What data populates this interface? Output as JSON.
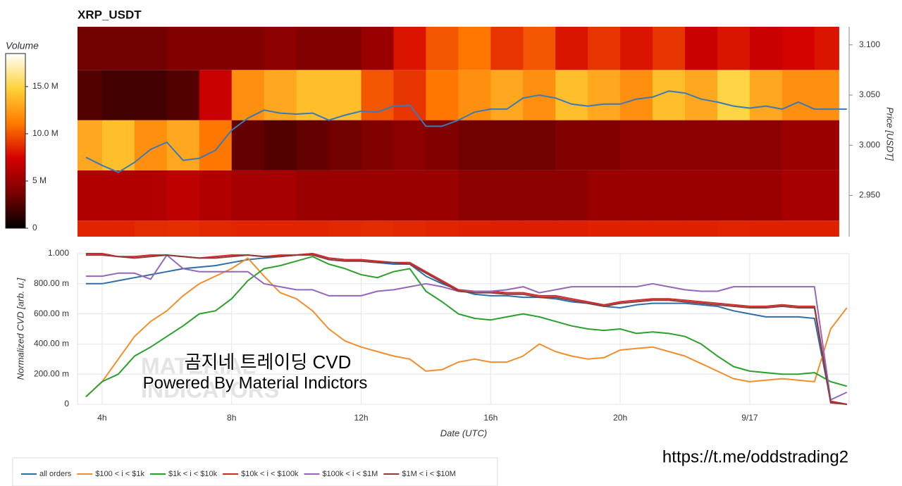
{
  "chart_data": [
    {
      "type": "heatmap",
      "title": "XRP_USDT",
      "y2label": "Price [USDT]",
      "colorbar_label": "Volume",
      "colorscale": [
        "#000000",
        "#7a0000",
        "#d40000",
        "#ff7a00",
        "#ffd23a",
        "#ffffff"
      ],
      "zlim": [
        0,
        18500000
      ],
      "zticks": [
        0,
        {
          "value": 5000000,
          "label": "5 M"
        },
        {
          "value": 10000000,
          "label": "10.0 M"
        },
        {
          "value": 15000000,
          "label": "15.0 M"
        }
      ],
      "xlim": [
        3.24,
        27.07
      ],
      "ylim": [
        2.909,
        3.118
      ],
      "yticks": [
        {
          "value": 3.1,
          "label": "3.100"
        },
        {
          "value": 3.05,
          "label": "3.050"
        },
        {
          "value": 3.0,
          "label": "3.000"
        },
        {
          "value": 2.95,
          "label": "2.950"
        }
      ],
      "x_bins": [
        3,
        4,
        5,
        6,
        7,
        8,
        9,
        10,
        11,
        12,
        13,
        14,
        15,
        16,
        17,
        18,
        19,
        20,
        21,
        22,
        23,
        24,
        25,
        26,
        26.75
      ],
      "y_bins": [
        2.875,
        2.925,
        2.975,
        3.025,
        3.075,
        3.125
      ],
      "z": [
        [
          8500000.0,
          8500000.0,
          8700000.0,
          8800000.0,
          8600000.0,
          8500000.0,
          8500000.0,
          8500000.0,
          8600000.0,
          8700000.0,
          8600000.0,
          8500000.0,
          8400000.0,
          8300000.0,
          8300000.0,
          8300000.0,
          8400000.0,
          8400000.0,
          8400000.0,
          8400000.0,
          8500000.0,
          8400000.0,
          8400000.0,
          8400000.0
        ],
        [
          6000000.0,
          6000000.0,
          6000000.0,
          6500000.0,
          6000000.0,
          5500000.0,
          5500000.0,
          5000000.0,
          5000000.0,
          5000000.0,
          5000000.0,
          5000000.0,
          4500000.0,
          4500000.0,
          4500000.0,
          4500000.0,
          5000000.0,
          5000000.0,
          5000000.0,
          5000000.0,
          5000000.0,
          5000000.0,
          5500000.0,
          5500000.0
        ],
        [
          13000000.0,
          14000000.0,
          12000000.0,
          13000000.0,
          11000000.0,
          3000000.0,
          2500000.0,
          3000000.0,
          3500000.0,
          4000000.0,
          4500000.0,
          4000000.0,
          3500000.0,
          3500000.0,
          3500000.0,
          4000000.0,
          4000000.0,
          4500000.0,
          4500000.0,
          4500000.0,
          4500000.0,
          4500000.0,
          5000000.0,
          5000000.0
        ],
        [
          2500000.0,
          2000000.0,
          2000000.0,
          2500000.0,
          7000000.0,
          12000000.0,
          13000000.0,
          14000000.0,
          14000000.0,
          10000000.0,
          9000000.0,
          11000000.0,
          12000000.0,
          13000000.0,
          12000000.0,
          14000000.0,
          13000000.0,
          12000000.0,
          14000000.0,
          13000000.0,
          15000000.0,
          13000000.0,
          12000000.0,
          12000000.0
        ],
        [
          3500000.0,
          3500000.0,
          3500000.0,
          4000000.0,
          4000000.0,
          4000000.0,
          4500000.0,
          4000000.0,
          4000000.0,
          5000000.0,
          8000000.0,
          10000000.0,
          11000000.0,
          9000000.0,
          10000000.0,
          8000000.0,
          9000000.0,
          8000000.0,
          9000000.0,
          7000000.0,
          8000000.0,
          7000000.0,
          7500000.0,
          8000000.0
        ]
      ],
      "x": [
        3.5,
        4,
        4.5,
        5,
        5.5,
        6,
        6.5,
        7,
        7.5,
        8,
        8.5,
        9,
        9.5,
        10,
        10.5,
        11,
        11.5,
        12,
        12.5,
        13,
        13.5,
        14,
        14.5,
        15,
        15.5,
        16,
        16.5,
        17,
        17.5,
        18,
        18.5,
        19,
        19.5,
        20,
        20.5,
        21,
        21.5,
        22,
        22.5,
        23,
        23.5,
        24,
        24.5,
        25,
        25.5,
        26,
        26.5,
        27
      ],
      "series": [
        {
          "name": "Price",
          "color": "#3a7ab8",
          "axis": "y2",
          "values": [
            2.988,
            2.98,
            2.973,
            2.983,
            2.996,
            3.003,
            2.985,
            2.987,
            2.995,
            3.015,
            3.027,
            3.035,
            3.032,
            3.031,
            3.032,
            3.025,
            3.03,
            3.034,
            3.033,
            3.039,
            3.04,
            3.019,
            3.019,
            3.025,
            3.033,
            3.036,
            3.036,
            3.047,
            3.05,
            3.047,
            3.041,
            3.039,
            3.041,
            3.041,
            3.046,
            3.048,
            3.054,
            3.052,
            3.046,
            3.043,
            3.039,
            3.037,
            3.039,
            3.036,
            3.043,
            3.036,
            3.036,
            3.036
          ]
        }
      ]
    },
    {
      "type": "line",
      "xlabel": "Date (UTC)",
      "ylabel": "Normalized CVD [arb. u.]",
      "xlim": [
        3.24,
        27.07
      ],
      "xticks": [
        {
          "value": 4,
          "label": "4h"
        },
        {
          "value": 8,
          "label": "8h"
        },
        {
          "value": 12,
          "label": "12h"
        },
        {
          "value": 16,
          "label": "16h"
        },
        {
          "value": 20,
          "label": "20h"
        },
        {
          "value": 24,
          "label": "9/17"
        }
      ],
      "ylim": [
        0,
        1
      ],
      "yticks": [
        0,
        {
          "value": 0.2,
          "label": "200.00 m"
        },
        {
          "value": 0.4,
          "label": "400.00 m"
        },
        {
          "value": 0.6,
          "label": "600.00 m"
        },
        {
          "value": 0.8,
          "label": "800.00 m"
        },
        {
          "value": 1,
          "label": "1.000"
        }
      ],
      "grid": true,
      "legend": "bottom-left",
      "watermark": [
        "MATERIAL",
        "INDICATORS"
      ],
      "annotations": [
        "곰지네 트레이딩 CVD",
        "Powered By Material Indictors",
        "https://t.me/oddstrading2"
      ],
      "x": [
        3.5,
        4,
        4.5,
        5,
        5.5,
        6,
        6.5,
        7,
        7.5,
        8,
        8.5,
        9,
        9.5,
        10,
        10.5,
        11,
        11.5,
        12,
        12.5,
        13,
        13.5,
        14,
        14.5,
        15,
        15.5,
        16,
        16.5,
        17,
        17.5,
        18,
        18.5,
        19,
        19.5,
        20,
        20.5,
        21,
        21.5,
        22,
        22.5,
        23,
        23.5,
        24,
        24.5,
        25,
        25.5,
        26,
        26.5,
        27
      ],
      "series": [
        {
          "name": "all orders",
          "color": "#2e6fa8",
          "values": [
            0.8,
            0.8,
            0.82,
            0.84,
            0.86,
            0.88,
            0.9,
            0.91,
            0.92,
            0.94,
            0.96,
            0.97,
            0.98,
            0.99,
            1.0,
            0.97,
            0.96,
            0.95,
            0.94,
            0.93,
            0.93,
            0.85,
            0.8,
            0.76,
            0.73,
            0.72,
            0.72,
            0.71,
            0.71,
            0.7,
            0.68,
            0.67,
            0.65,
            0.64,
            0.66,
            0.67,
            0.67,
            0.67,
            0.66,
            0.65,
            0.62,
            0.6,
            0.58,
            0.58,
            0.58,
            0.57,
            0.02,
            0
          ]
        },
        {
          "name": "$100 < i < $1k",
          "color": "#f28e2b",
          "values": [
            0.05,
            0.15,
            0.3,
            0.45,
            0.55,
            0.62,
            0.72,
            0.8,
            0.85,
            0.9,
            0.97,
            0.85,
            0.74,
            0.7,
            0.62,
            0.5,
            0.42,
            0.38,
            0.35,
            0.32,
            0.3,
            0.22,
            0.23,
            0.28,
            0.3,
            0.28,
            0.28,
            0.32,
            0.4,
            0.35,
            0.32,
            0.3,
            0.31,
            0.36,
            0.37,
            0.38,
            0.35,
            0.32,
            0.27,
            0.22,
            0.17,
            0.15,
            0.16,
            0.17,
            0.16,
            0.15,
            0.5,
            0.64
          ]
        },
        {
          "name": "$1k < i < $10k",
          "color": "#2ca02c",
          "values": [
            0.05,
            0.15,
            0.2,
            0.32,
            0.38,
            0.45,
            0.52,
            0.6,
            0.62,
            0.7,
            0.82,
            0.9,
            0.92,
            0.95,
            0.98,
            0.93,
            0.9,
            0.86,
            0.84,
            0.88,
            0.9,
            0.75,
            0.68,
            0.6,
            0.57,
            0.56,
            0.58,
            0.6,
            0.58,
            0.55,
            0.52,
            0.5,
            0.49,
            0.5,
            0.47,
            0.48,
            0.47,
            0.45,
            0.4,
            0.32,
            0.25,
            0.22,
            0.21,
            0.2,
            0.2,
            0.21,
            0.15,
            0.12
          ]
        },
        {
          "name": "$10k < i < $100k",
          "color": "#d62728",
          "values": [
            1.0,
            1.0,
            0.98,
            0.98,
            0.99,
            0.99,
            0.98,
            0.97,
            0.98,
            0.99,
            0.99,
            0.98,
            0.99,
            0.99,
            1.0,
            0.97,
            0.96,
            0.96,
            0.95,
            0.94,
            0.94,
            0.88,
            0.82,
            0.76,
            0.75,
            0.75,
            0.74,
            0.74,
            0.72,
            0.72,
            0.7,
            0.68,
            0.66,
            0.68,
            0.69,
            0.7,
            0.7,
            0.69,
            0.68,
            0.67,
            0.66,
            0.65,
            0.65,
            0.66,
            0.65,
            0.65,
            0.02,
            0
          ]
        },
        {
          "name": "$100k < i < $1M",
          "color": "#9467bd",
          "values": [
            0.85,
            0.85,
            0.87,
            0.87,
            0.83,
            0.99,
            0.9,
            0.88,
            0.88,
            0.88,
            0.88,
            0.8,
            0.78,
            0.76,
            0.76,
            0.72,
            0.72,
            0.72,
            0.75,
            0.76,
            0.78,
            0.8,
            0.78,
            0.75,
            0.75,
            0.75,
            0.76,
            0.78,
            0.74,
            0.76,
            0.78,
            0.78,
            0.78,
            0.78,
            0.78,
            0.8,
            0.78,
            0.76,
            0.75,
            0.75,
            0.78,
            0.78,
            0.78,
            0.78,
            0.78,
            0.78,
            0.03,
            0.08
          ]
        },
        {
          "name": "$1M < i < $10M",
          "color": "#8c3b3b",
          "values": [
            0.99,
            0.99,
            0.98,
            0.97,
            0.98,
            0.99,
            0.98,
            0.97,
            0.97,
            0.98,
            0.99,
            0.98,
            0.98,
            0.99,
            0.99,
            0.96,
            0.95,
            0.95,
            0.94,
            0.94,
            0.93,
            0.87,
            0.81,
            0.75,
            0.74,
            0.74,
            0.73,
            0.73,
            0.71,
            0.71,
            0.69,
            0.67,
            0.65,
            0.67,
            0.68,
            0.69,
            0.69,
            0.68,
            0.67,
            0.66,
            0.65,
            0.64,
            0.64,
            0.65,
            0.64,
            0.64,
            0.01,
            0
          ]
        }
      ]
    }
  ]
}
